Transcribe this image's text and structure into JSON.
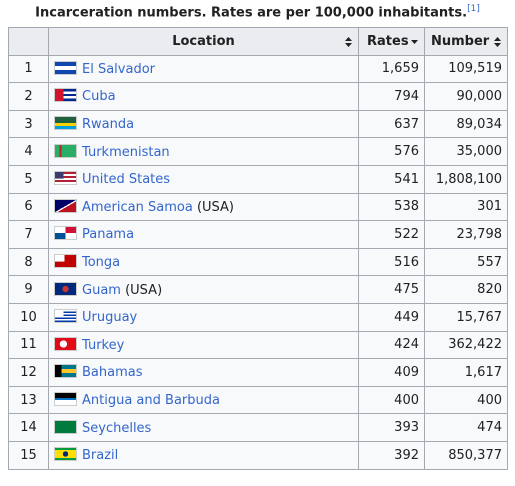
{
  "caption": {
    "text": "Incarceration numbers. Rates are per 100,000 inhabitants.",
    "ref": "[1]"
  },
  "table": {
    "headers": [
      "Location",
      "Rates",
      "Number"
    ],
    "rows": [
      [
        "1",
        "El Salvador",
        null,
        "1,659",
        "109,519"
      ],
      [
        "2",
        "Cuba",
        null,
        "794",
        "90,000"
      ],
      [
        "3",
        "Rwanda",
        null,
        "637",
        "89,034"
      ],
      [
        "4",
        "Turkmenistan",
        null,
        "576",
        "35,000"
      ],
      [
        "5",
        "United States",
        null,
        "541",
        "1,808,100"
      ],
      [
        "6",
        "American Samoa",
        "(USA)",
        "538",
        "301"
      ],
      [
        "7",
        "Panama",
        null,
        "522",
        "23,798"
      ],
      [
        "8",
        "Tonga",
        null,
        "516",
        "557"
      ],
      [
        "9",
        "Guam",
        "(USA)",
        "475",
        "820"
      ],
      [
        "10",
        "Uruguay",
        null,
        "449",
        "15,767"
      ],
      [
        "11",
        "Turkey",
        null,
        "424",
        "362,422"
      ],
      [
        "12",
        "Bahamas",
        null,
        "409",
        "1,617"
      ],
      [
        "13",
        "Antigua and Barbuda",
        null,
        "400",
        "400"
      ],
      [
        "14",
        "Seychelles",
        null,
        "393",
        "474"
      ],
      [
        "15",
        "Brazil",
        null,
        "392",
        "850,377"
      ]
    ]
  }
}
